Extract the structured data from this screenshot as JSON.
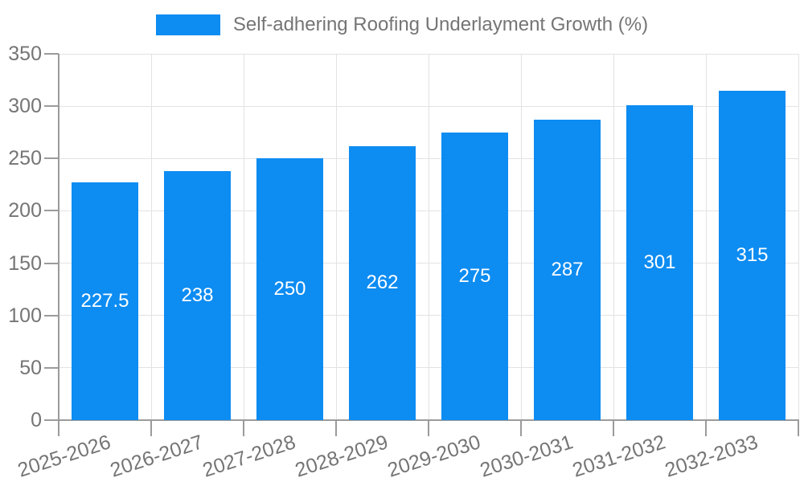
{
  "chart_data": {
    "type": "bar",
    "title": "",
    "legend_position": "top-center",
    "grid": true,
    "categories": [
      "2025-2026",
      "2026-2027",
      "2027-2028",
      "2028-2029",
      "2029-2030",
      "2030-2031",
      "2031-2032",
      "2032-2033"
    ],
    "series": [
      {
        "name": "Self-adhering Roofing Underlayment Growth (%)",
        "values": [
          227.5,
          238,
          250,
          262,
          275,
          287,
          301,
          315
        ]
      }
    ],
    "value_labels": [
      "227.5",
      "238",
      "250",
      "262",
      "275",
      "287",
      "301",
      "315"
    ],
    "xlabel": "",
    "ylabel": "",
    "ylim": [
      0,
      350
    ],
    "yticks": [
      0,
      50,
      100,
      150,
      200,
      250,
      300,
      350
    ]
  },
  "colors": {
    "bar": "#0d8cf2",
    "grid": "#e3e3e3",
    "axis": "#9b9b9b",
    "tick_text": "#757575",
    "value_text": "#ffffff"
  }
}
